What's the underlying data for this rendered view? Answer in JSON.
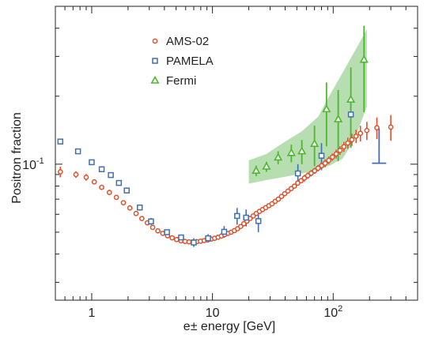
{
  "chart_data": {
    "type": "scatter",
    "title": "",
    "xlabel": "e± energy [GeV]",
    "ylabel": "Positron fraction",
    "xscale": "log",
    "yscale": "log",
    "xlim": [
      0.5,
      500
    ],
    "ylim": [
      0.025,
      0.5
    ],
    "grid": false,
    "legend_position": "top-left",
    "x_tick_labels": [
      {
        "value": 1,
        "label": "1"
      },
      {
        "value": 10,
        "label": "10"
      },
      {
        "value": 100,
        "label": "10",
        "sup": "2"
      }
    ],
    "y_tick_labels": [
      {
        "value": 0.1,
        "label": "10",
        "sup": "-1"
      }
    ],
    "series": [
      {
        "name": "AMS-02",
        "color": "#e0502a",
        "marker": "circle",
        "points": [
          [
            0.55,
            0.0925,
            0.005
          ],
          [
            0.74,
            0.09,
            0.003
          ],
          [
            0.9,
            0.0875,
            0.003
          ],
          [
            1.05,
            0.0835,
            0.002
          ],
          [
            1.21,
            0.079,
            0.002
          ],
          [
            1.4,
            0.075,
            0.002
          ],
          [
            1.6,
            0.0713,
            0.001
          ],
          [
            1.83,
            0.0675,
            0.001
          ],
          [
            2.07,
            0.064,
            0.001
          ],
          [
            2.33,
            0.0605,
            0.001
          ],
          [
            2.6,
            0.0575,
            0.001
          ],
          [
            2.89,
            0.055,
            0.001
          ],
          [
            3.2,
            0.0525,
            0.001
          ],
          [
            3.53,
            0.0507,
            0.001
          ],
          [
            3.88,
            0.0494,
            0.001
          ],
          [
            4.25,
            0.0482,
            0.001
          ],
          [
            4.64,
            0.0472,
            0.001
          ],
          [
            5.05,
            0.0464,
            0.001
          ],
          [
            5.48,
            0.0458,
            0.001
          ],
          [
            5.93,
            0.0455,
            0.001
          ],
          [
            6.4,
            0.0453,
            0.001
          ],
          [
            6.9,
            0.0452,
            0.001
          ],
          [
            7.42,
            0.0454,
            0.001
          ],
          [
            7.97,
            0.0456,
            0.001
          ],
          [
            8.54,
            0.0459,
            0.001
          ],
          [
            9.14,
            0.0462,
            0.001
          ],
          [
            9.77,
            0.0466,
            0.001
          ],
          [
            10.43,
            0.047,
            0.001
          ],
          [
            11.13,
            0.0475,
            0.001
          ],
          [
            11.86,
            0.0481,
            0.001
          ],
          [
            12.63,
            0.0488,
            0.001
          ],
          [
            13.44,
            0.0494,
            0.001
          ],
          [
            14.29,
            0.05,
            0.001
          ],
          [
            15.18,
            0.0508,
            0.001
          ],
          [
            16.13,
            0.0518,
            0.001
          ],
          [
            17.13,
            0.053,
            0.001
          ],
          [
            18.19,
            0.0545,
            0.001
          ],
          [
            19.31,
            0.056,
            0.001
          ],
          [
            20.49,
            0.0575,
            0.001
          ],
          [
            21.75,
            0.059,
            0.0012
          ],
          [
            23.08,
            0.0605,
            0.0012
          ],
          [
            24.5,
            0.0618,
            0.0012
          ],
          [
            26.0,
            0.063,
            0.0012
          ],
          [
            27.61,
            0.0642,
            0.0013
          ],
          [
            29.32,
            0.0655,
            0.0013
          ],
          [
            31.13,
            0.0668,
            0.0014
          ],
          [
            33.06,
            0.0685,
            0.0015
          ],
          [
            35.12,
            0.07,
            0.0015
          ],
          [
            37.32,
            0.072,
            0.0016
          ],
          [
            39.66,
            0.074,
            0.0017
          ],
          [
            42.17,
            0.076,
            0.0018
          ],
          [
            44.86,
            0.078,
            0.0019
          ],
          [
            47.74,
            0.08,
            0.002
          ],
          [
            50.83,
            0.0825,
            0.002
          ],
          [
            54.15,
            0.0845,
            0.002
          ],
          [
            57.72,
            0.0868,
            0.003
          ],
          [
            61.56,
            0.089,
            0.003
          ],
          [
            65.69,
            0.0912,
            0.003
          ],
          [
            70.15,
            0.0935,
            0.003
          ],
          [
            74.97,
            0.096,
            0.003
          ],
          [
            80.15,
            0.0985,
            0.003
          ],
          [
            85.8,
            0.101,
            0.004
          ],
          [
            91.9,
            0.104,
            0.004
          ],
          [
            98.58,
            0.1075,
            0.004
          ],
          [
            105.84,
            0.111,
            0.005
          ],
          [
            113.8,
            0.115,
            0.005
          ],
          [
            122.54,
            0.1195,
            0.006
          ],
          [
            132.16,
            0.124,
            0.007
          ],
          [
            142.8,
            0.1285,
            0.008
          ],
          [
            154.63,
            0.133,
            0.009
          ],
          [
            168.0,
            0.137,
            0.011
          ],
          [
            190.0,
            0.141,
            0.013
          ],
          [
            230.0,
            0.145,
            0.016
          ],
          [
            300.0,
            0.146,
            0.019
          ]
        ]
      },
      {
        "name": "PAMELA",
        "color": "#3f6fb5",
        "marker": "square",
        "points": [
          [
            0.55,
            0.126,
            0.002
          ],
          [
            0.77,
            0.114,
            0.002
          ],
          [
            1.0,
            0.102,
            0.002
          ],
          [
            1.21,
            0.095,
            0.002
          ],
          [
            1.44,
            0.0895,
            0.002
          ],
          [
            1.68,
            0.0826,
            0.002
          ],
          [
            1.95,
            0.0765,
            0.002
          ],
          [
            2.5,
            0.0643,
            0.002
          ],
          [
            3.1,
            0.0558,
            0.002
          ],
          [
            4.2,
            0.05,
            0.001
          ],
          [
            5.5,
            0.0474,
            0.001
          ],
          [
            7.0,
            0.045,
            0.002
          ],
          [
            9.2,
            0.047,
            0.002
          ],
          [
            12.5,
            0.0502,
            0.003
          ],
          [
            16.0,
            0.059,
            0.005
          ],
          [
            19.0,
            0.058,
            0.005
          ],
          [
            24.0,
            0.056,
            0.006
          ],
          [
            51.0,
            0.091,
            0.009
          ],
          [
            80.0,
            0.109,
            0.015
          ],
          [
            140.0,
            0.166,
            0.035
          ]
        ]
      },
      {
        "name": "Fermi",
        "color": "#4db82e",
        "marker": "triangle",
        "band_color": "#9fd397",
        "points": [
          [
            23.0,
            0.0935,
            0.005
          ],
          [
            28.0,
            0.0975,
            0.005
          ],
          [
            35.0,
            0.107,
            0.007
          ],
          [
            45.0,
            0.112,
            0.01
          ],
          [
            55.0,
            0.114,
            0.014
          ],
          [
            70.0,
            0.123,
            0.025
          ],
          [
            88.0,
            0.175,
            0.055
          ],
          [
            110.0,
            0.158,
            0.055
          ],
          [
            140.0,
            0.193,
            0.075
          ],
          [
            180.0,
            0.29,
            0.12
          ]
        ],
        "band_upper": [
          [
            20.0,
            0.104
          ],
          [
            28.0,
            0.111
          ],
          [
            40.0,
            0.126
          ],
          [
            55.0,
            0.14
          ],
          [
            75.0,
            0.162
          ],
          [
            95.0,
            0.205
          ],
          [
            120.0,
            0.255
          ],
          [
            150.0,
            0.315
          ],
          [
            190.0,
            0.395
          ]
        ],
        "band_lower": [
          [
            190.0,
            0.18
          ],
          [
            150.0,
            0.128
          ],
          [
            120.0,
            0.106
          ],
          [
            95.0,
            0.099
          ],
          [
            75.0,
            0.094
          ],
          [
            55.0,
            0.091
          ],
          [
            40.0,
            0.088
          ],
          [
            28.0,
            0.085
          ],
          [
            20.0,
            0.082
          ]
        ]
      }
    ],
    "extra_marks": [
      {
        "x": 240,
        "y_top": 0.144,
        "y_bottom": 0.101,
        "color": "#3f6fb5",
        "kind": "upper-limit"
      }
    ]
  }
}
